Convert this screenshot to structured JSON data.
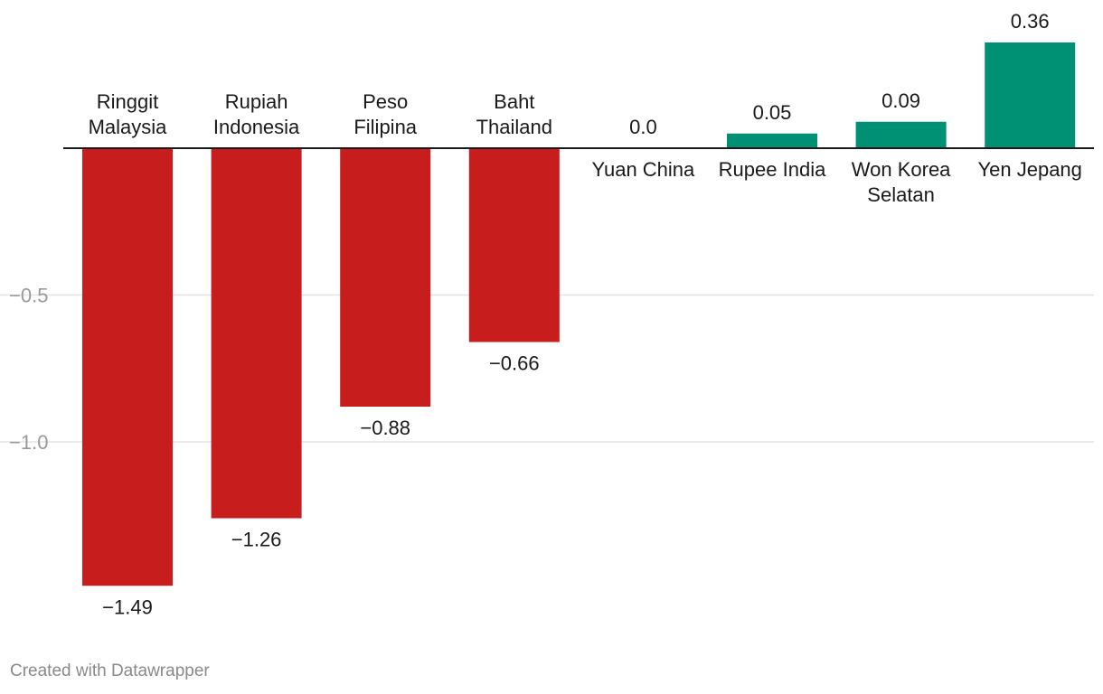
{
  "chart_data": {
    "type": "bar",
    "categories": [
      [
        "Ringgit",
        "Malaysia"
      ],
      [
        "Rupiah",
        "Indonesia"
      ],
      [
        "Peso",
        "Filipina"
      ],
      [
        "Baht",
        "Thailand"
      ],
      [
        "Yuan China"
      ],
      [
        "Rupee India"
      ],
      [
        "Won Korea",
        "Selatan"
      ],
      [
        "Yen Jepang"
      ]
    ],
    "values": [
      -1.49,
      -1.26,
      -0.88,
      -0.66,
      0.0,
      0.05,
      0.09,
      0.36
    ],
    "value_labels": [
      "−1.49",
      "−1.26",
      "−0.88",
      "−0.66",
      "0.0",
      "0.05",
      "0.09",
      "0.36"
    ],
    "yticks": [
      {
        "value": -0.5,
        "label": "−0.5"
      },
      {
        "value": -1.0,
        "label": "−1.0"
      }
    ],
    "ylim": [
      -1.5,
      0.36
    ],
    "grid": true,
    "colors": {
      "negative": "#c71e1d",
      "positive": "#009175"
    }
  },
  "footer": {
    "credit": "Created with Datawrapper"
  }
}
